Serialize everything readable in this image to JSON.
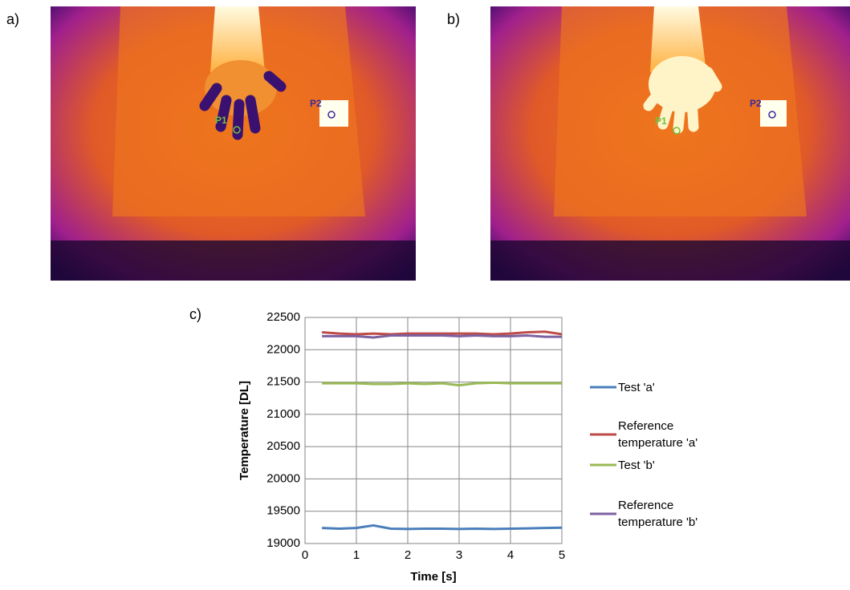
{
  "panel_labels": [
    "a)",
    "b)",
    "c)"
  ],
  "images": [
    {
      "markers": [
        "P1",
        "P2"
      ]
    },
    {
      "markers": [
        "P1",
        "P2"
      ]
    }
  ],
  "chart_data": {
    "type": "line",
    "x_label": "Time [s]",
    "y_label": "Temperature [DL]",
    "x": [
      0.33,
      0.67,
      1,
      1.33,
      1.67,
      2,
      2.33,
      2.67,
      3,
      3.33,
      3.67,
      4,
      4.33,
      4.67,
      5
    ],
    "series": [
      {
        "name": "Test 'a'",
        "color": "#4a7ebb",
        "values": [
          19240,
          19230,
          19240,
          19280,
          19230,
          19225,
          19230,
          19230,
          19225,
          19230,
          19225,
          19230,
          19235,
          19240,
          19245
        ]
      },
      {
        "name": "Reference temperature 'a'",
        "color": "#be4b48",
        "values": [
          22270,
          22250,
          22240,
          22250,
          22240,
          22250,
          22250,
          22250,
          22250,
          22250,
          22240,
          22250,
          22270,
          22280,
          22240
        ]
      },
      {
        "name": "Test 'b'",
        "color": "#98b954",
        "values": [
          21480,
          21480,
          21480,
          21470,
          21470,
          21480,
          21470,
          21480,
          21450,
          21480,
          21490,
          21480,
          21480,
          21480,
          21480
        ]
      },
      {
        "name": "Reference temperature 'b'",
        "color": "#7d60a0",
        "values": [
          22210,
          22210,
          22210,
          22190,
          22220,
          22220,
          22220,
          22220,
          22210,
          22220,
          22210,
          22210,
          22220,
          22200,
          22200
        ]
      }
    ],
    "xlim": [
      0,
      5
    ],
    "xticks": [
      0,
      1,
      2,
      3,
      4,
      5
    ],
    "ylim": [
      19000,
      22500
    ],
    "yticks": [
      19000,
      19500,
      20000,
      20500,
      21000,
      21500,
      22000,
      22500
    ],
    "grid": true,
    "legend": "right"
  }
}
